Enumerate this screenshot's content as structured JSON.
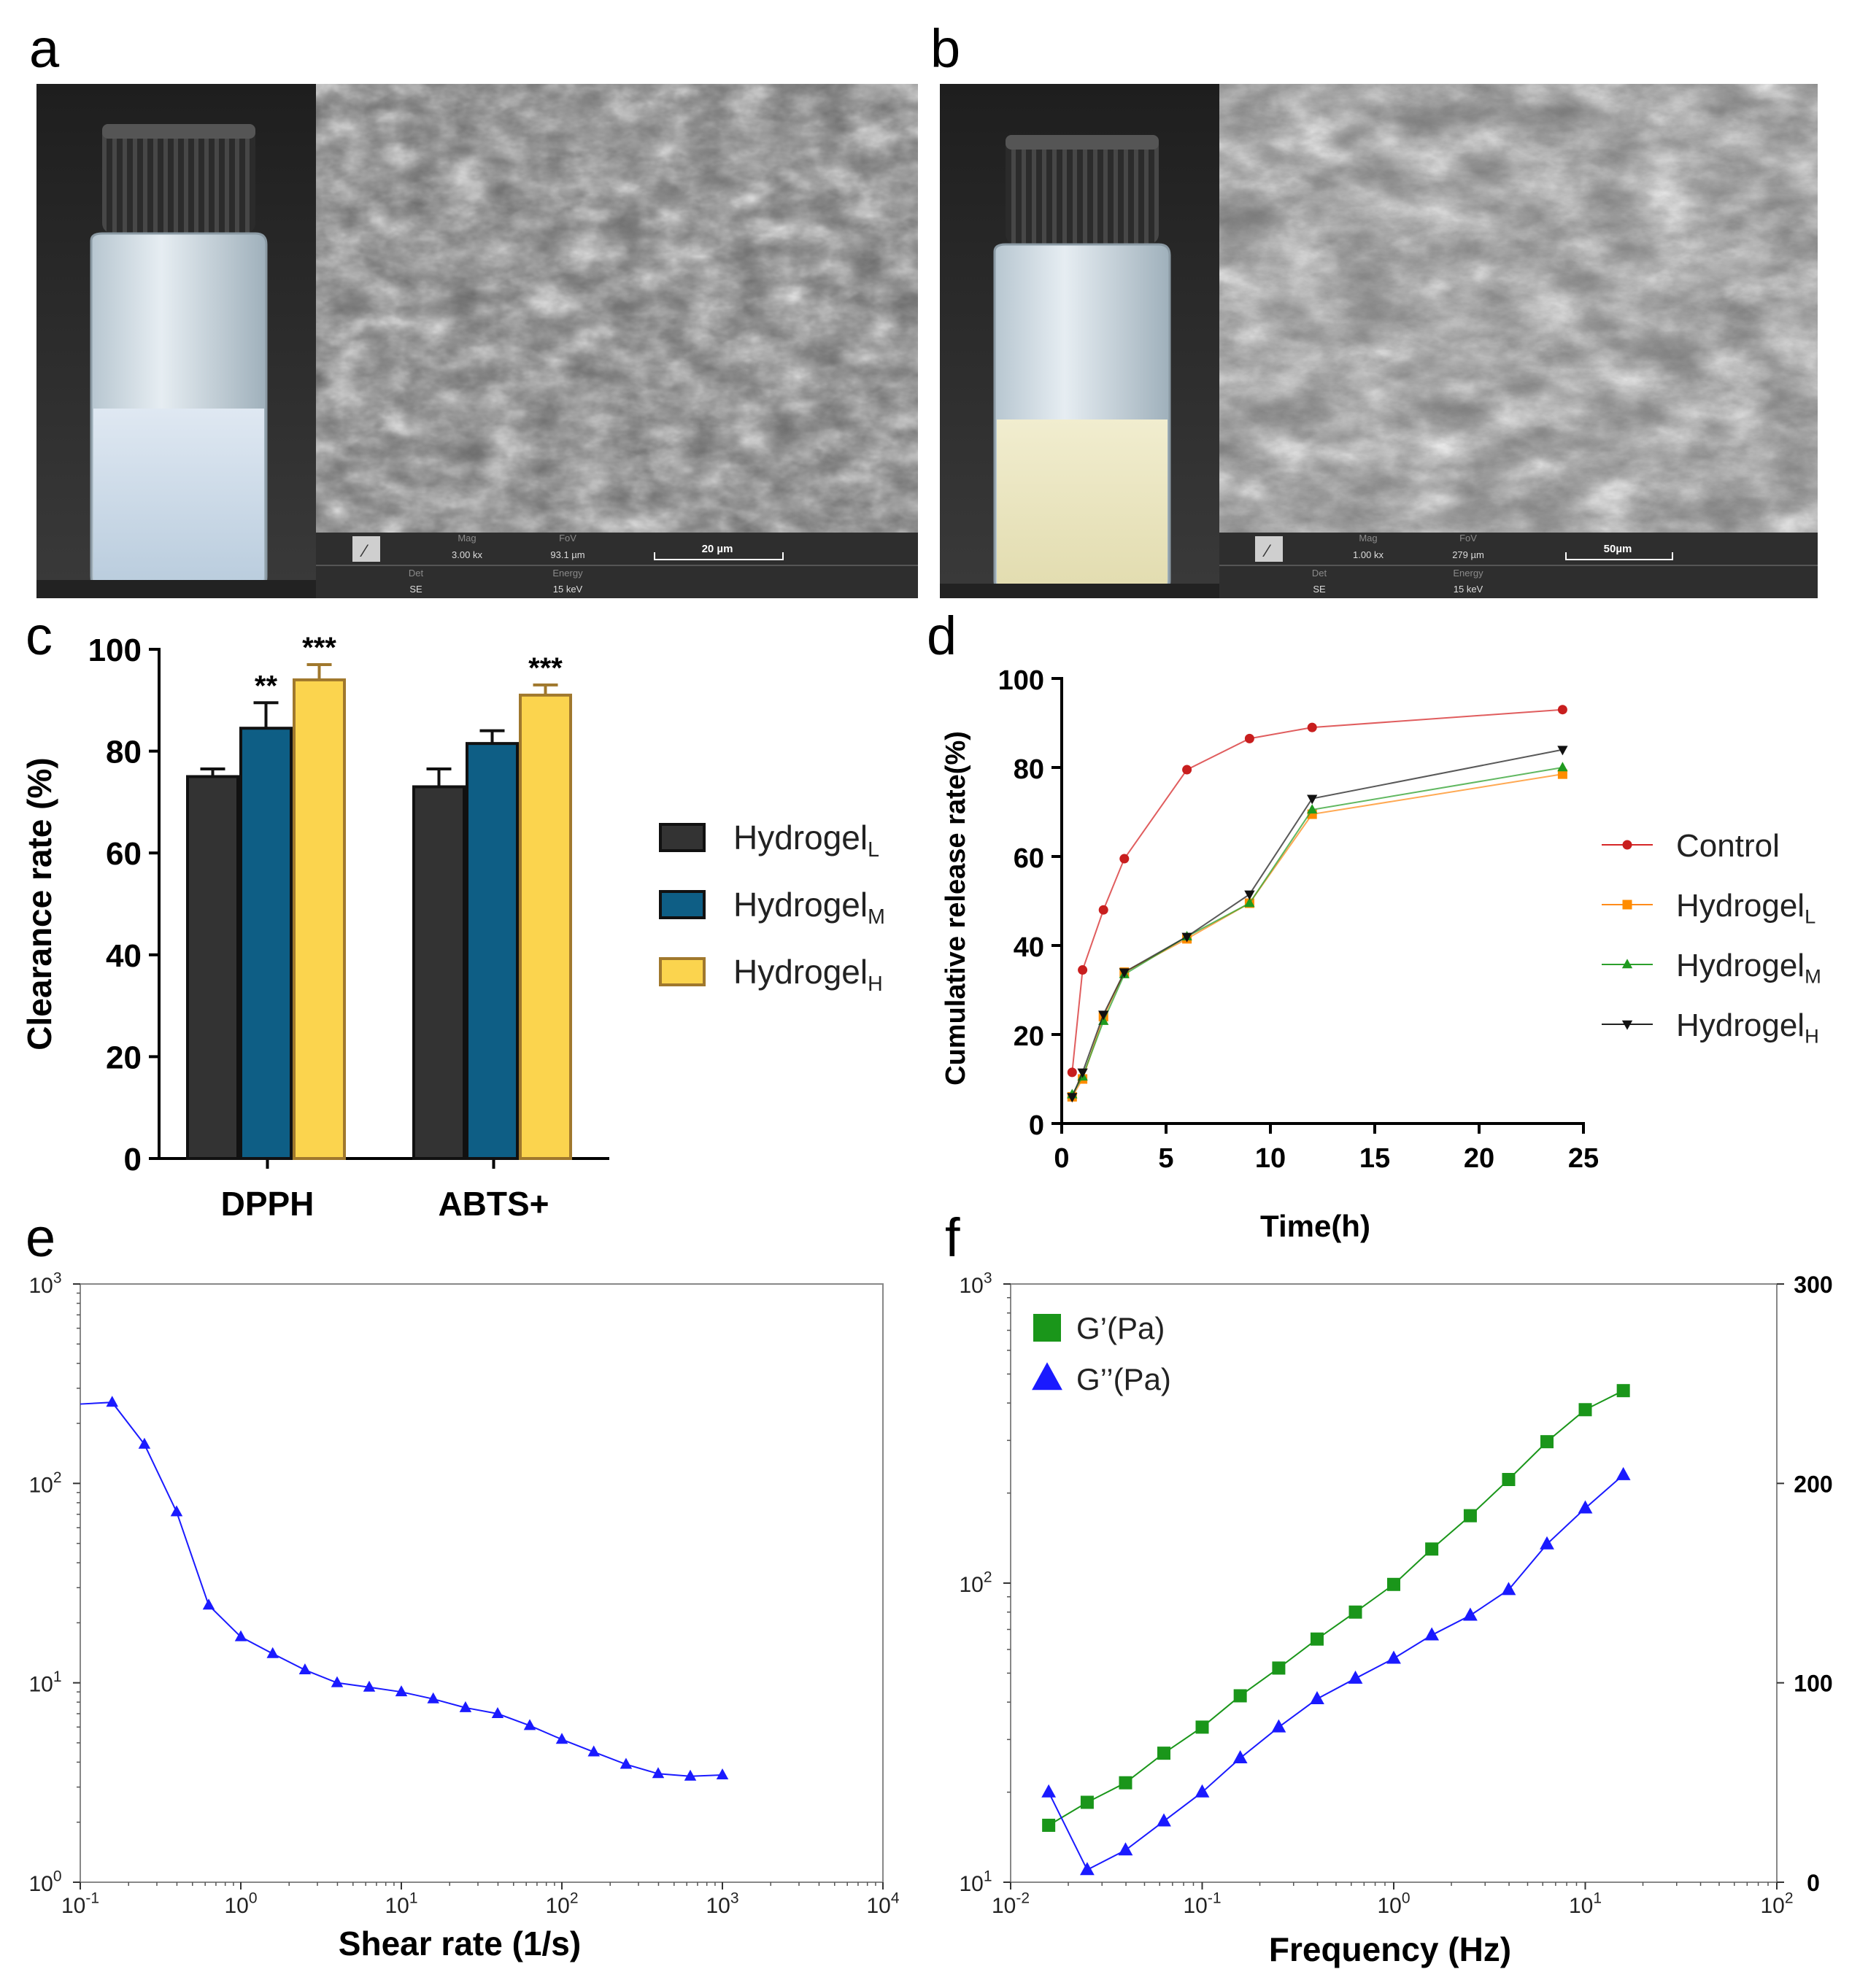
{
  "panels": {
    "a": {
      "letter": "a",
      "sem": {
        "mag_label": "Mag",
        "mag": "3.00 kx",
        "fov_label": "FoV",
        "fov": "93.1 µm",
        "scale": "20 µm",
        "det_label": "Det",
        "det": "SE",
        "energy_label": "Energy",
        "energy": "15 keV"
      }
    },
    "b": {
      "letter": "b",
      "sem": {
        "mag_label": "Mag",
        "mag": "1.00 kx",
        "fov_label": "FoV",
        "fov": "279 µm",
        "scale": "50µm",
        "det_label": "Det",
        "det": "SE",
        "energy_label": "Energy",
        "energy": "15 keV"
      }
    },
    "c": {
      "letter": "c"
    },
    "d": {
      "letter": "d"
    },
    "e": {
      "letter": "e"
    },
    "f": {
      "letter": "f"
    }
  },
  "colors": {
    "hydrogel_l": "#333333",
    "hydrogel_m": "#0e5e85",
    "hydrogel_h": "#fbd44e",
    "hydrogel_h_edge": "#a0782d",
    "control": "#d62728",
    "d_l": "#ff8c1a",
    "d_m": "#2ca02c",
    "d_h": "#222222",
    "e_line": "#1a1aff",
    "f_gp": "#1a961a",
    "f_gpp": "#1a1aff"
  },
  "chart_data": [
    {
      "id": "c",
      "type": "bar",
      "categories": [
        "DPPH",
        "ABTS+"
      ],
      "ylabel": "Clearance rate (%)",
      "ylim": [
        0,
        100
      ],
      "yticks": [
        0,
        20,
        40,
        60,
        80,
        100
      ],
      "series": [
        {
          "name": "Hydrogel",
          "sub": "L",
          "values": [
            75,
            73
          ],
          "errors": [
            1.5,
            3.5
          ],
          "sig": [
            "",
            ""
          ]
        },
        {
          "name": "Hydrogel",
          "sub": "M",
          "values": [
            84.5,
            81.5
          ],
          "errors": [
            5,
            2.5
          ],
          "sig": [
            "**",
            ""
          ]
        },
        {
          "name": "Hydrogel",
          "sub": "H",
          "values": [
            94,
            91
          ],
          "errors": [
            3,
            2
          ],
          "sig": [
            "***",
            "***"
          ]
        }
      ]
    },
    {
      "id": "d",
      "type": "line",
      "xlabel": "Time(h)",
      "ylabel": "Cumulative release rate(%)",
      "xlim": [
        0,
        25
      ],
      "ylim": [
        0,
        100
      ],
      "xticks": [
        0,
        5,
        10,
        15,
        20,
        25
      ],
      "yticks": [
        0,
        20,
        40,
        60,
        80,
        100
      ],
      "x": [
        0.5,
        1,
        2,
        3,
        6,
        9,
        12,
        24
      ],
      "series": [
        {
          "name": "Control",
          "sub": "",
          "marker": "circle",
          "values": [
            11.5,
            34.5,
            48,
            59.5,
            79.5,
            86.5,
            89,
            93
          ]
        },
        {
          "name": "Hydrogel",
          "sub": "L",
          "marker": "square",
          "values": [
            6,
            10,
            24,
            34,
            41.5,
            49.5,
            69.5,
            78.5
          ]
        },
        {
          "name": "Hydrogel",
          "sub": "M",
          "marker": "triangle-up",
          "values": [
            6.5,
            10.5,
            23,
            33.5,
            42,
            49.5,
            70.5,
            80
          ]
        },
        {
          "name": "Hydrogel",
          "sub": "H",
          "marker": "triangle-down",
          "values": [
            6,
            11.5,
            24.5,
            34,
            42,
            51.5,
            73,
            84
          ]
        }
      ]
    },
    {
      "id": "e",
      "type": "line",
      "scale": "log-log",
      "xlabel": "Shear rate (1/s)",
      "ylabel": "",
      "xlim_exp": [
        -1,
        4
      ],
      "ylim_exp": [
        0,
        3
      ],
      "xtick_labels": [
        [
          "10",
          "-1"
        ],
        [
          "10",
          "0"
        ],
        [
          "10",
          "1"
        ],
        [
          "10",
          "2"
        ],
        [
          "10",
          "3"
        ],
        [
          "10",
          "4"
        ]
      ],
      "ytick_labels": [
        [
          "10",
          "0"
        ],
        [
          "10",
          "1"
        ],
        [
          "10",
          "2"
        ],
        [
          "10",
          "3"
        ]
      ],
      "x": [
        0.1,
        0.158,
        0.251,
        0.398,
        0.631,
        1,
        1.58,
        2.51,
        3.98,
        6.31,
        10,
        15.8,
        25.1,
        39.8,
        63.1,
        100,
        158,
        251,
        398,
        631,
        1000
      ],
      "values": [
        250,
        255,
        157,
        72,
        24.5,
        17,
        14,
        11.6,
        10,
        9.5,
        9,
        8.3,
        7.5,
        7,
        6.1,
        5.2,
        4.5,
        3.9,
        3.5,
        3.4,
        3.45
      ]
    },
    {
      "id": "f",
      "type": "scatter-line",
      "scale": "log-log",
      "xlabel": "Frequency (Hz)",
      "xlim_exp": [
        -2,
        2
      ],
      "ylim_exp": [
        1,
        3
      ],
      "xtick_labels": [
        [
          "10",
          "-2"
        ],
        [
          "10",
          "-1"
        ],
        [
          "10",
          "0"
        ],
        [
          "10",
          "1"
        ],
        [
          "10",
          "2"
        ]
      ],
      "ytick_labels": [
        [
          "10",
          "1"
        ],
        [
          "10",
          "2"
        ],
        [
          "10",
          "3"
        ]
      ],
      "y2ticks": [
        0,
        100,
        200,
        300
      ],
      "x": [
        0.0158,
        0.0251,
        0.0398,
        0.0631,
        0.1,
        0.158,
        0.251,
        0.398,
        0.631,
        1,
        1.58,
        2.51,
        3.98,
        6.31,
        10,
        15.8
      ],
      "series": [
        {
          "name": "G’(Pa)",
          "marker": "square",
          "values": [
            15.5,
            18.5,
            21.5,
            27,
            33,
            42,
            52,
            65,
            80,
            99,
            130,
            168,
            222,
            297,
            380,
            440
          ]
        },
        {
          "name": "G’’(Pa)",
          "marker": "triangle-up",
          "values": [
            20,
            11,
            12.8,
            16,
            20,
            26,
            33,
            41,
            48,
            56,
            67,
            78,
            95,
            135,
            178,
            230
          ]
        }
      ]
    }
  ]
}
